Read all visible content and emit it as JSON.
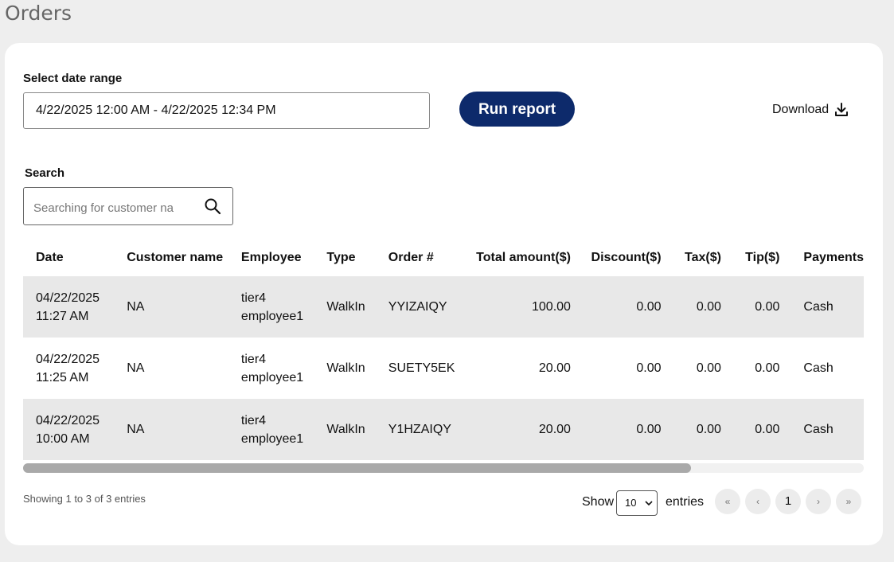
{
  "page": {
    "title": "Orders"
  },
  "date_range": {
    "label": "Select date range",
    "value": "4/22/2025 12:00 AM - 4/22/2025 12:34 PM"
  },
  "run_report": {
    "label": "Run report"
  },
  "download": {
    "label": "Download",
    "icon": "download-icon"
  },
  "search": {
    "label": "Search",
    "placeholder": "Searching for customer na",
    "icon": "search-icon"
  },
  "table": {
    "headers": {
      "date": "Date",
      "customer": "Customer name",
      "employee": "Employee",
      "type": "Type",
      "order": "Order #",
      "total": "Total amount($)",
      "discount": "Discount($)",
      "tax": "Tax($)",
      "tip": "Tip($)",
      "payments": "Payments"
    },
    "rows": [
      {
        "date": "04/22/2025",
        "time": "11:27 AM",
        "customer": "NA",
        "employee_1": "tier4",
        "employee_2": "employee1",
        "type": "WalkIn",
        "order": "YYIZAIQY",
        "total": "100.00",
        "discount": "0.00",
        "tax": "0.00",
        "tip": "0.00",
        "payments": "Cash"
      },
      {
        "date": "04/22/2025",
        "time": "11:25 AM",
        "customer": "NA",
        "employee_1": "tier4",
        "employee_2": "employee1",
        "type": "WalkIn",
        "order": "SUETY5EK",
        "total": "20.00",
        "discount": "0.00",
        "tax": "0.00",
        "tip": "0.00",
        "payments": "Cash"
      },
      {
        "date": "04/22/2025",
        "time": "10:00 AM",
        "customer": "NA",
        "employee_1": "tier4",
        "employee_2": "employee1",
        "type": "WalkIn",
        "order": "Y1HZAIQY",
        "total": "20.00",
        "discount": "0.00",
        "tax": "0.00",
        "tip": "0.00",
        "payments": "Cash"
      }
    ]
  },
  "footer": {
    "info": "Showing 1 to 3 of 3 entries",
    "show_label": "Show",
    "page_size": "10",
    "entries_label": "entries",
    "pagination": {
      "first": "«",
      "prev": "‹",
      "current": "1",
      "next": "›",
      "last": "»"
    }
  },
  "colors": {
    "accent": "#0d2a6b",
    "row_stripe": "#e8e8e8",
    "background": "#eeeeee"
  }
}
